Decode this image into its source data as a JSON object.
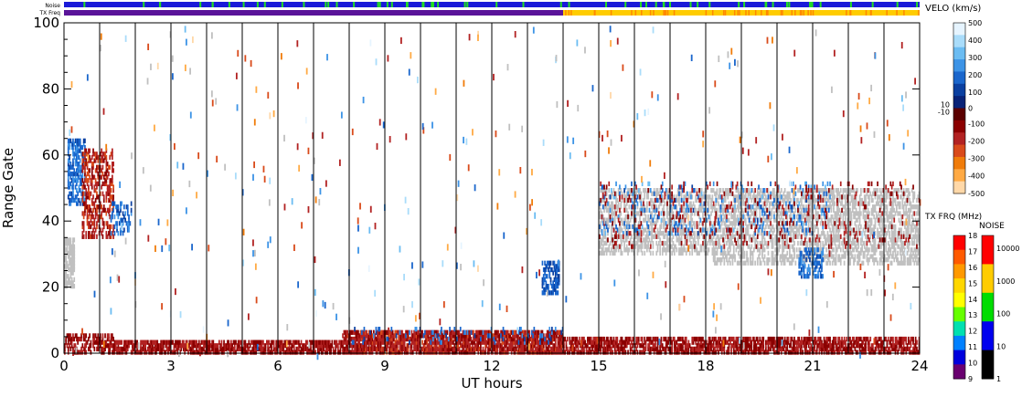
{
  "chart_data": {
    "type": "heatmap",
    "xlabel": "UT hours",
    "ylabel": "Range Gate",
    "xlim": [
      0,
      24
    ],
    "ylim": [
      0,
      100
    ],
    "x_ticks": [
      "0",
      "3",
      "6",
      "9",
      "12",
      "15",
      "18",
      "21",
      "24"
    ],
    "x_tick_values": [
      0,
      3,
      6,
      9,
      12,
      15,
      18,
      21,
      24
    ],
    "y_ticks": [
      "0",
      "20",
      "40",
      "60",
      "80",
      "100"
    ],
    "y_tick_values": [
      0,
      20,
      40,
      60,
      80,
      100
    ],
    "scan_boundaries_ut": [
      1.0,
      2.0,
      3.0,
      4.0,
      5.0,
      6.0,
      7.0,
      8.0,
      9.0,
      10.0,
      11.0,
      12.0,
      13.0,
      14.0,
      15.0,
      16.0,
      17.0,
      18.0,
      19.0,
      20.0,
      21.0,
      22.0,
      23.0
    ],
    "regions": [
      {
        "x0": 0.0,
        "x1": 1.4,
        "y0": 0,
        "y1": 6,
        "value": -130,
        "density": 0.55
      },
      {
        "x0": 1.4,
        "x1": 7.8,
        "y0": 0,
        "y1": 4,
        "value": -140,
        "density": 0.75
      },
      {
        "x0": 7.8,
        "x1": 14.0,
        "y0": 0,
        "y1": 7,
        "value": -160,
        "density": 0.85
      },
      {
        "x0": 8.0,
        "x1": 14.0,
        "y0": 3,
        "y1": 8,
        "value": 180,
        "density": 0.08
      },
      {
        "x0": 14.0,
        "x1": 24.0,
        "y0": 0,
        "y1": 5,
        "value": -140,
        "density": 0.7
      },
      {
        "x0": 0.1,
        "x1": 0.6,
        "y0": 45,
        "y1": 65,
        "value": 200,
        "density": 0.6
      },
      {
        "x0": 0.5,
        "x1": 1.4,
        "y0": 35,
        "y1": 62,
        "value": -180,
        "density": 0.45
      },
      {
        "x0": 0.0,
        "x1": 0.3,
        "y0": 20,
        "y1": 35,
        "value": 0,
        "density": 0.8
      },
      {
        "x0": 1.3,
        "x1": 1.9,
        "y0": 36,
        "y1": 46,
        "value": 180,
        "density": 0.35
      },
      {
        "x0": 13.4,
        "x1": 13.9,
        "y0": 18,
        "y1": 28,
        "value": 150,
        "density": 0.55
      },
      {
        "x0": 15.0,
        "x1": 18.2,
        "y0": 30,
        "y1": 50,
        "value": 0,
        "density": 0.45
      },
      {
        "x0": 18.2,
        "x1": 24.0,
        "y0": 27,
        "y1": 50,
        "value": 0,
        "density": 0.5
      },
      {
        "x0": 15.0,
        "x1": 21.5,
        "y0": 36,
        "y1": 52,
        "value": 220,
        "density": 0.1
      },
      {
        "x0": 15.0,
        "x1": 24.0,
        "y0": 32,
        "y1": 52,
        "value": -150,
        "density": 0.06
      },
      {
        "x0": 20.6,
        "x1": 21.3,
        "y0": 23,
        "y1": 32,
        "value": 200,
        "density": 0.5
      }
    ],
    "velocity_colorbar": {
      "title": "VELO (km/s)",
      "labels": [
        "500",
        "400",
        "300",
        "200",
        "100",
        "10",
        "0",
        "-10",
        "-100",
        "-200",
        "-300",
        "-400",
        "-500"
      ],
      "range": [
        -500,
        500
      ],
      "colors_high_to_low": [
        "#e6f4ff",
        "#a9dcfa",
        "#6bbcf2",
        "#3c93e6",
        "#1a66cc",
        "#0a3fa0",
        "#082277",
        "#5a0000",
        "#8b0000",
        "#b22222",
        "#d94a1a",
        "#f07c0a",
        "#ffaa44",
        "#ffd8a8"
      ]
    },
    "txfreq_colorbar": {
      "title": "TX FRQ (MHz)",
      "labels": [
        "18",
        "17",
        "16",
        "15",
        "14",
        "13",
        "12",
        "11",
        "10",
        "9"
      ],
      "colors_high_to_low": [
        "#ff0000",
        "#ff5a00",
        "#ff9900",
        "#ffd700",
        "#ffff00",
        "#66ff00",
        "#00e0b0",
        "#0080ff",
        "#0000dd",
        "#6a0070"
      ]
    },
    "noise_colorbar": {
      "title": "NOISE",
      "labels": [
        "10000",
        "1000",
        "100",
        "10",
        "1"
      ],
      "colors_high_to_low": [
        "#ff0000",
        "#ffcc00",
        "#00dd00",
        "#0000ee",
        "#000000"
      ]
    },
    "status_bars": {
      "noise_label": "Noise",
      "txfreq_label": "TX Freq",
      "noise_color": "#1a1ad8",
      "noise_spike_color": "#22dd22",
      "txfreq_segments": [
        {
          "x0": 0.0,
          "x1": 14.0,
          "color": "#5a1499"
        },
        {
          "x0": 14.0,
          "x1": 24.0,
          "color": "#ffcc00"
        }
      ]
    },
    "ground_scatter_color": "#c0c0c0"
  }
}
